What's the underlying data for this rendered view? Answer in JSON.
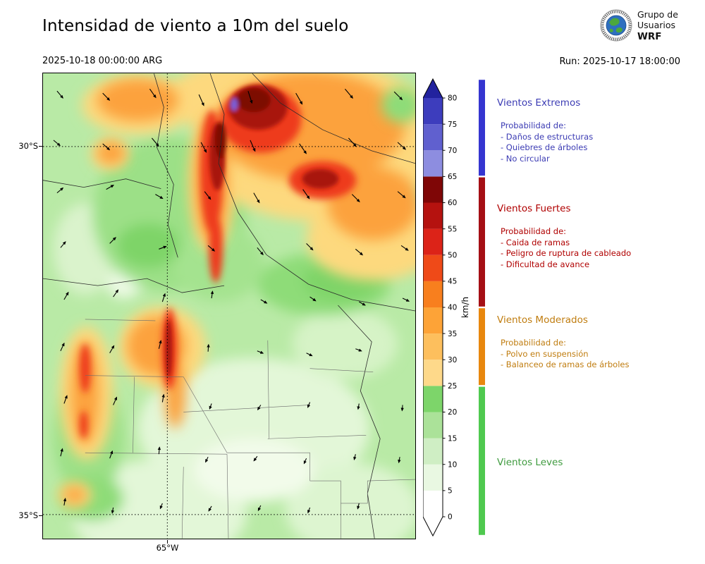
{
  "header": {
    "title": "Intensidad de viento a 10m del suelo",
    "valid_datetime": "2025-10-18 00:00:00 ARG",
    "run_label": "Run: 2025-10-17 18:00:00",
    "logo": {
      "line1": "Grupo de",
      "line2": "Usuarios",
      "line3": "WRF"
    }
  },
  "map": {
    "lat_ticks": [
      "30°S",
      "35°S"
    ],
    "lon_ticks": [
      "65°W"
    ],
    "arrows": [
      [
        20,
        25,
        50,
        13
      ],
      [
        85,
        28,
        46,
        14
      ],
      [
        152,
        22,
        55,
        15
      ],
      [
        222,
        30,
        66,
        17
      ],
      [
        292,
        25,
        72,
        18
      ],
      [
        360,
        28,
        60,
        18
      ],
      [
        430,
        22,
        50,
        17
      ],
      [
        500,
        26,
        45,
        16
      ],
      [
        15,
        95,
        40,
        12
      ],
      [
        85,
        100,
        42,
        13
      ],
      [
        155,
        92,
        50,
        15
      ],
      [
        225,
        98,
        62,
        16
      ],
      [
        295,
        95,
        66,
        17
      ],
      [
        365,
        100,
        55,
        17
      ],
      [
        435,
        92,
        48,
        16
      ],
      [
        505,
        98,
        42,
        15
      ],
      [
        20,
        170,
        -40,
        11
      ],
      [
        90,
        165,
        -30,
        12
      ],
      [
        160,
        172,
        30,
        12
      ],
      [
        230,
        168,
        52,
        14
      ],
      [
        300,
        170,
        60,
        16
      ],
      [
        370,
        165,
        55,
        16
      ],
      [
        440,
        172,
        45,
        15
      ],
      [
        505,
        168,
        40,
        14
      ],
      [
        25,
        248,
        -50,
        11
      ],
      [
        95,
        242,
        -45,
        12
      ],
      [
        165,
        250,
        -20,
        11
      ],
      [
        235,
        245,
        40,
        12
      ],
      [
        305,
        248,
        50,
        13
      ],
      [
        375,
        242,
        45,
        13
      ],
      [
        445,
        250,
        40,
        13
      ],
      [
        510,
        245,
        35,
        12
      ],
      [
        30,
        322,
        -60,
        12
      ],
      [
        100,
        318,
        -55,
        12
      ],
      [
        170,
        325,
        -72,
        12
      ],
      [
        240,
        320,
        -82,
        10
      ],
      [
        310,
        322,
        30,
        10
      ],
      [
        380,
        318,
        35,
        10
      ],
      [
        450,
        325,
        30,
        10
      ],
      [
        512,
        320,
        25,
        10
      ],
      [
        25,
        395,
        -65,
        12
      ],
      [
        95,
        398,
        -60,
        12
      ],
      [
        165,
        392,
        -76,
        12
      ],
      [
        235,
        396,
        -86,
        10
      ],
      [
        305,
        395,
        22,
        9
      ],
      [
        375,
        398,
        26,
        9
      ],
      [
        445,
        392,
        20,
        9
      ],
      [
        30,
        470,
        -70,
        12
      ],
      [
        100,
        472,
        -66,
        12
      ],
      [
        170,
        468,
        -80,
        11
      ],
      [
        240,
        470,
        110,
        8
      ],
      [
        310,
        472,
        122,
        8
      ],
      [
        380,
        468,
        112,
        8
      ],
      [
        450,
        470,
        100,
        8
      ],
      [
        512,
        472,
        95,
        8
      ],
      [
        25,
        545,
        -76,
        11
      ],
      [
        95,
        548,
        -70,
        11
      ],
      [
        165,
        542,
        -85,
        10
      ],
      [
        235,
        546,
        116,
        8
      ],
      [
        305,
        545,
        126,
        8
      ],
      [
        375,
        548,
        114,
        8
      ],
      [
        445,
        542,
        104,
        8
      ],
      [
        508,
        546,
        100,
        8
      ],
      [
        30,
        615,
        -80,
        10
      ],
      [
        100,
        618,
        100,
        8
      ],
      [
        170,
        612,
        112,
        8
      ],
      [
        240,
        616,
        120,
        8
      ],
      [
        310,
        615,
        116,
        8
      ],
      [
        380,
        618,
        110,
        8
      ],
      [
        450,
        612,
        104,
        8
      ]
    ]
  },
  "colorbar": {
    "unit": "km/h",
    "ticks": [
      0,
      5,
      10,
      15,
      20,
      25,
      30,
      35,
      40,
      45,
      50,
      55,
      60,
      65,
      70,
      75,
      80
    ],
    "segment_colors": [
      "#ffffff",
      "#e9f8e2",
      "#cfeec4",
      "#abe299",
      "#7dd56a",
      "#fed98a",
      "#fdbf5d",
      "#fda337",
      "#f87f1e",
      "#ef4a18",
      "#dc2318",
      "#b5120f",
      "#7f0606",
      "#8d8de0",
      "#6060cf",
      "#3d3dbd"
    ],
    "over_color": "#22229e",
    "under_color": "#ffffff"
  },
  "legend": {
    "categories": [
      {
        "title": "Vientos Extremos",
        "color": "#3c3cb4",
        "bar_color": "#3535d0",
        "bar_range": [
          65,
          "top"
        ],
        "subtitle": "Probabilidad de:",
        "items": [
          "- Daños de estructuras",
          "- Quiebres de árboles",
          "- No circular"
        ]
      },
      {
        "title": "Vientos Fuertes",
        "color": "#b00000",
        "bar_color": "#a50f15",
        "bar_range": [
          40,
          65
        ],
        "subtitle": "Probabilidad de:",
        "items": [
          "- Caida de ramas",
          "- Peligro de ruptura de cableado",
          "- Dificultad de avance"
        ]
      },
      {
        "title": "Vientos Moderados",
        "color": "#c07d10",
        "bar_color": "#e8870e",
        "bar_range": [
          25,
          40
        ],
        "subtitle": "Probabilidad de:",
        "items": [
          "- Polvo en suspensión",
          "- Balanceo de ramas de árboles"
        ]
      },
      {
        "title": "Vientos Leves",
        "color": "#3f9b3f",
        "bar_color": "#4fc94f",
        "bar_range": [
          "bottom",
          25
        ],
        "subtitle": "",
        "items": []
      }
    ]
  },
  "chart_data": {
    "type": "heatmap",
    "title": "Intensidad de viento a 10m del suelo",
    "valid_time": "2025-10-18 00:00:00 ARG",
    "run_time": "2025-10-17 18:00:00",
    "units": "km/h",
    "colorbar_range": [
      0,
      80
    ],
    "colorbar_tick_step": 5,
    "colorbar_extend": "both",
    "lat_gridlines": [
      "30°S",
      "35°S"
    ],
    "lon_gridlines": [
      "65°W"
    ],
    "categories": [
      {
        "name": "Vientos Leves",
        "range_kmh": [
          0,
          25
        ]
      },
      {
        "name": "Vientos Moderados",
        "range_kmh": [
          25,
          40
        ]
      },
      {
        "name": "Vientos Fuertes",
        "range_kmh": [
          40,
          65
        ]
      },
      {
        "name": "Vientos Extremos",
        "range_kmh": [
          65,
          80
        ]
      }
    ]
  }
}
